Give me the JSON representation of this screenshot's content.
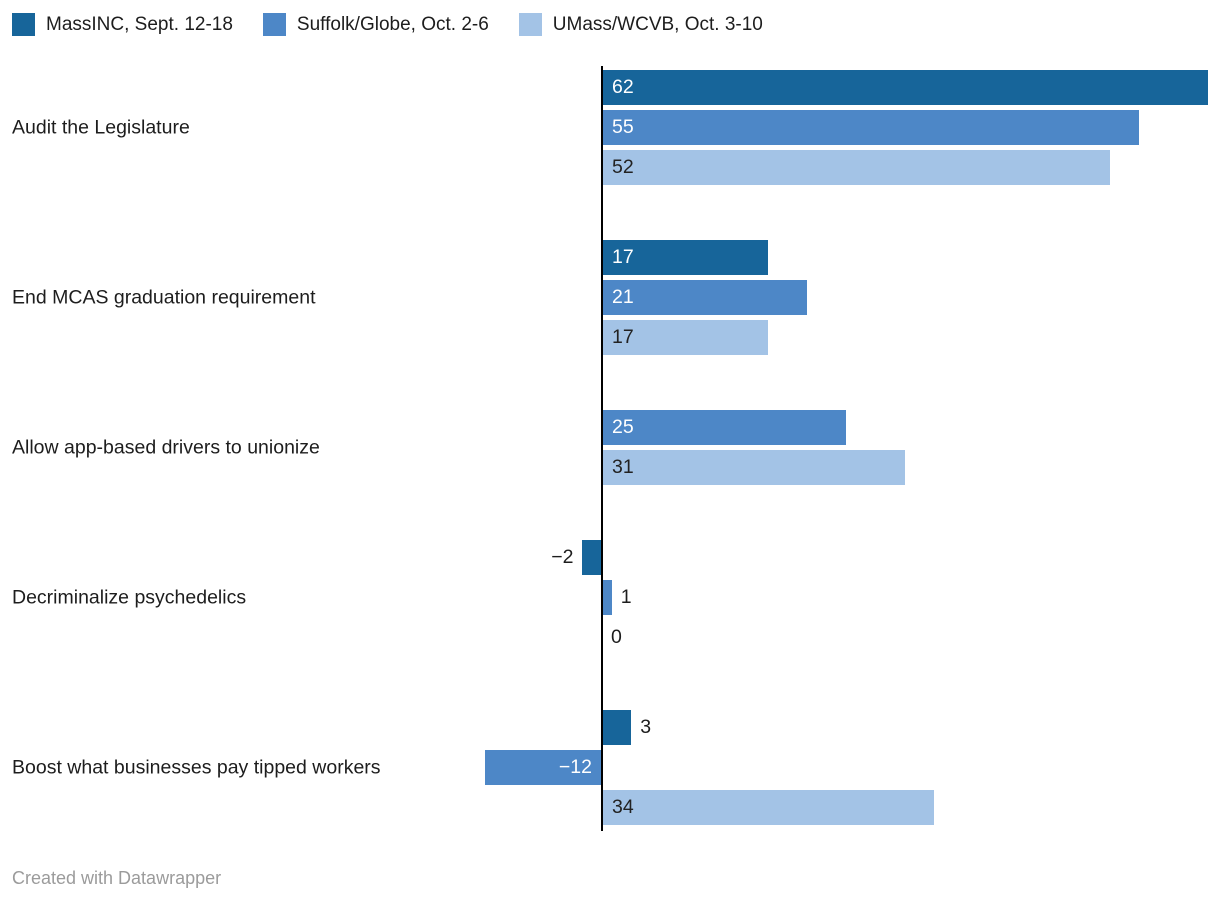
{
  "legend": {
    "items": [
      {
        "label": "MassINC, Sept. 12-18",
        "color": "#17659a"
      },
      {
        "label": "Suffolk/Globe, Oct. 2-6",
        "color": "#4d87c7"
      },
      {
        "label": "UMass/WCVB, Oct. 3-10",
        "color": "#a3c3e6"
      }
    ]
  },
  "chart_data": {
    "type": "bar",
    "orientation": "horizontal",
    "title": "",
    "categories": [
      "Audit the Legislature",
      "End MCAS graduation requirement",
      "Allow app-based drivers to unionize",
      "Decriminalize psychedelics",
      "Boost what businesses pay tipped workers"
    ],
    "series": [
      {
        "name": "MassINC, Sept. 12-18",
        "color": "#17659a",
        "inside_label_color": "#ffffff",
        "values": [
          62,
          17,
          null,
          -2,
          3
        ]
      },
      {
        "name": "Suffolk/Globe, Oct. 2-6",
        "color": "#4d87c7",
        "inside_label_color": "#ffffff",
        "values": [
          55,
          21,
          25,
          1,
          -12
        ]
      },
      {
        "name": "UMass/WCVB, Oct. 3-10",
        "color": "#a3c3e6",
        "inside_label_color": "#222222",
        "values": [
          52,
          17,
          31,
          0,
          34
        ]
      }
    ],
    "axis": {
      "baseline_value": 0
    },
    "layout_hints": {
      "legend_position": "top",
      "grid": false,
      "value_labels": true,
      "negative_values_shown": true
    }
  },
  "footer": {
    "credit": "Created with Datawrapper"
  },
  "colors": {
    "baseline": "#000000",
    "category_label": "#1d1d1d",
    "outside_label": "#1d1d1d",
    "footer": "#9b9b9b",
    "background": "#ffffff"
  }
}
